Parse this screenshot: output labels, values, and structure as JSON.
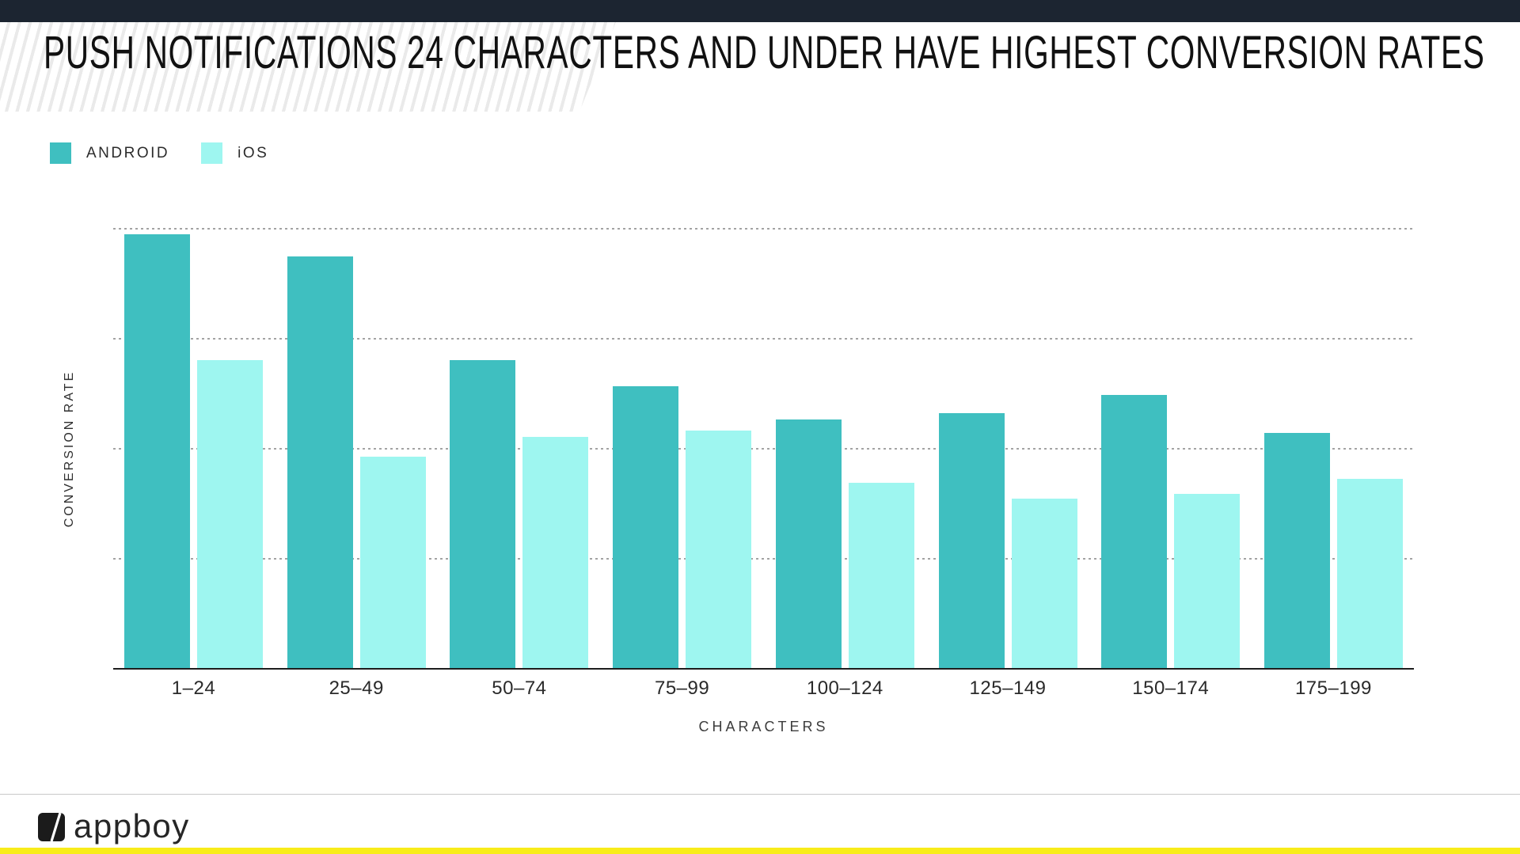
{
  "header": {
    "title": "PUSH NOTIFICATIONS 24 CHARACTERS AND UNDER HAVE HIGHEST CONVERSION RATES"
  },
  "legend": {
    "items": [
      {
        "label": "ANDROID",
        "color": "#3FBFC0"
      },
      {
        "label": "iOS",
        "color": "#9EF6F0"
      }
    ]
  },
  "chart_data": {
    "type": "bar",
    "title": "PUSH NOTIFICATIONS 24 CHARACTERS AND UNDER HAVE HIGHEST CONVERSION RATES",
    "categories": [
      "1–24",
      "25–49",
      "50–74",
      "75–99",
      "100–124",
      "125–149",
      "150–174",
      "175–199"
    ],
    "series": [
      {
        "name": "ANDROID",
        "color": "#3FBFC0",
        "values": [
          98.5,
          93.5,
          70,
          64,
          56.5,
          58,
          62,
          53.5
        ]
      },
      {
        "name": "iOS",
        "color": "#9EF6F0",
        "values": [
          70,
          48,
          52.5,
          54,
          42,
          38.5,
          39.5,
          43
        ]
      }
    ],
    "xlabel": "CHARACTERS",
    "ylabel": "CONVERSION RATE",
    "ylim": [
      0,
      100
    ],
    "value_unit": "relative height, % of top gridline (no numeric labels shown in chart)",
    "gridlines": [
      25,
      50,
      75,
      100
    ],
    "grid_style": "dashed horizontal, no y tick labels",
    "legend_position": "top-left"
  },
  "footer": {
    "logo_text": "appboy"
  },
  "colors": {
    "top_bar": "#1C2531",
    "android": "#3FBFC0",
    "ios": "#9EF6F0",
    "bottom_accent": "#F8EC1A",
    "gridline": "#A3A3A3",
    "axis": "#1D1D1D"
  }
}
